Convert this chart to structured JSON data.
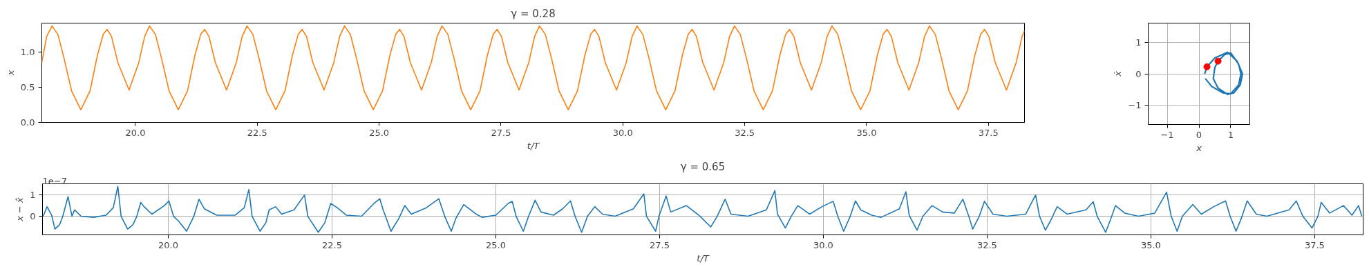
{
  "chart_data": [
    {
      "type": "line",
      "title": "γ = 0.28",
      "xlabel": "t/T",
      "ylabel": "x",
      "xlim": [
        18.08,
        38.24
      ],
      "ylim": [
        0,
        1.41
      ],
      "xticks": [
        {
          "value": 20,
          "label": "20.0"
        },
        22.5,
        {
          "value": 25,
          "label": "25.0"
        },
        27.5,
        {
          "value": 30,
          "label": "30.0"
        },
        32.5,
        {
          "value": 35,
          "label": "35.0"
        },
        37.5
      ],
      "yticks": [
        {
          "value": 0,
          "label": "0.0"
        },
        {
          "value": 0.5,
          "label": "0.5"
        },
        {
          "value": 1,
          "label": "1.0"
        }
      ],
      "series": [
        {
          "color": "#ff7f0e",
          "x": [
            18.08,
            18.18,
            18.29,
            18.41,
            18.54,
            18.69,
            18.88,
            19.07,
            19.22,
            19.34,
            19.42,
            19.51,
            19.64,
            19.87,
            20.07,
            20.19,
            20.29,
            20.41,
            20.54,
            20.69,
            20.88,
            21.07,
            21.22,
            21.34,
            21.42,
            21.51,
            21.64,
            21.87,
            22.07,
            22.19,
            22.29,
            22.41,
            22.54,
            22.69,
            22.88,
            23.07,
            23.22,
            23.34,
            23.42,
            23.51,
            23.64,
            23.87,
            24.07,
            24.19,
            24.29,
            24.41,
            24.54,
            24.69,
            24.88,
            25.07,
            25.22,
            25.34,
            25.42,
            25.51,
            25.64,
            25.87,
            26.07,
            26.19,
            26.29,
            26.41,
            26.54,
            26.69,
            26.88,
            27.07,
            27.22,
            27.34,
            27.42,
            27.51,
            27.64,
            27.87,
            28.07,
            28.19,
            28.29,
            28.41,
            28.54,
            28.69,
            28.88,
            29.07,
            29.22,
            29.34,
            29.42,
            29.51,
            29.64,
            29.87,
            30.07,
            30.19,
            30.29,
            30.41,
            30.54,
            30.69,
            30.88,
            31.07,
            31.22,
            31.34,
            31.42,
            31.51,
            31.64,
            31.87,
            32.07,
            32.19,
            32.29,
            32.41,
            32.54,
            32.69,
            32.88,
            33.07,
            33.22,
            33.34,
            33.42,
            33.51,
            33.64,
            33.87,
            34.07,
            34.19,
            34.29,
            34.41,
            34.54,
            34.69,
            34.88,
            35.07,
            35.22,
            35.34,
            35.42,
            35.51,
            35.64,
            35.87,
            36.07,
            36.19,
            36.29,
            36.41,
            36.54,
            36.69,
            36.88,
            37.07,
            37.22,
            37.34,
            37.42,
            37.51,
            37.64,
            37.87,
            38.07,
            38.19,
            38.24
          ],
          "values": [
            0.85,
            1.22,
            1.37,
            1.25,
            0.9,
            0.45,
            0.18,
            0.45,
            0.95,
            1.25,
            1.32,
            1.22,
            0.85,
            0.46,
            0.85,
            1.22,
            1.37,
            1.25,
            0.9,
            0.45,
            0.18,
            0.45,
            0.95,
            1.25,
            1.32,
            1.22,
            0.85,
            0.46,
            0.85,
            1.22,
            1.37,
            1.25,
            0.9,
            0.45,
            0.18,
            0.45,
            0.95,
            1.25,
            1.32,
            1.22,
            0.85,
            0.46,
            0.85,
            1.22,
            1.37,
            1.25,
            0.9,
            0.45,
            0.18,
            0.45,
            0.95,
            1.25,
            1.32,
            1.22,
            0.85,
            0.46,
            0.85,
            1.22,
            1.37,
            1.25,
            0.9,
            0.45,
            0.18,
            0.45,
            0.95,
            1.25,
            1.32,
            1.22,
            0.85,
            0.46,
            0.85,
            1.22,
            1.37,
            1.25,
            0.9,
            0.45,
            0.18,
            0.45,
            0.95,
            1.25,
            1.32,
            1.22,
            0.85,
            0.46,
            0.85,
            1.22,
            1.37,
            1.25,
            0.9,
            0.45,
            0.18,
            0.45,
            0.95,
            1.25,
            1.32,
            1.22,
            0.85,
            0.46,
            0.85,
            1.22,
            1.37,
            1.25,
            0.9,
            0.45,
            0.18,
            0.45,
            0.95,
            1.25,
            1.32,
            1.22,
            0.85,
            0.46,
            0.85,
            1.22,
            1.37,
            1.25,
            0.9,
            0.45,
            0.18,
            0.45,
            0.95,
            1.25,
            1.32,
            1.22,
            0.85,
            0.46,
            0.85,
            1.22,
            1.37,
            1.25,
            0.9,
            0.45,
            0.18,
            0.45,
            0.95,
            1.25,
            1.32,
            1.22,
            0.85,
            0.46,
            0.85,
            1.22,
            1.3
          ]
        }
      ]
    },
    {
      "type": "line",
      "xlabel": "x",
      "ylabel": "ẋ",
      "xlim": [
        -1.6,
        1.6
      ],
      "ylim": [
        -1.6,
        1.6
      ],
      "grid": true,
      "xticks": [
        {
          "value": -1,
          "label": "−1"
        },
        0,
        1
      ],
      "yticks": [
        {
          "value": -1,
          "label": "−1"
        },
        0,
        1
      ],
      "series": [
        {
          "color": "#1f77b4",
          "x": [
            0.18,
            0.25,
            0.5,
            0.9,
            1.2,
            1.37,
            1.3,
            1.1,
            0.9,
            0.6,
            0.45,
            0.5,
            0.6,
            0.8,
            1.0,
            1.25,
            1.32,
            1.25,
            1.0,
            0.75,
            0.4,
            0.2
          ],
          "values": [
            0,
            0.22,
            0.5,
            0.68,
            0.4,
            0,
            -0.35,
            -0.6,
            -0.65,
            -0.45,
            -0.15,
            0.2,
            0.4,
            0.6,
            0.66,
            0.3,
            0,
            -0.35,
            -0.63,
            -0.6,
            -0.4,
            -0.15
          ]
        },
        {
          "type": "scatter",
          "marker": "circle",
          "color": "#ff0000",
          "x": [
            0.25,
            0.6
          ],
          "values": [
            0.22,
            0.4
          ]
        }
      ]
    },
    {
      "type": "line",
      "title": "γ = 0.65",
      "xlabel": "t/T",
      "ylabel": "x − x̂",
      "annotations": [
        "1e−7"
      ],
      "grid": true,
      "xlim": [
        18.08,
        38.24
      ],
      "ylim": [
        -0.87,
        1.52
      ],
      "xticks": [
        {
          "value": 20,
          "label": "20.0"
        },
        22.5,
        {
          "value": 25,
          "label": "25.0"
        },
        27.5,
        {
          "value": 30,
          "label": "30.0"
        },
        32.5,
        {
          "value": 35,
          "label": "35.0"
        },
        37.5
      ],
      "yticks": [
        0,
        1
      ],
      "series": [
        {
          "color": "#1f77b4",
          "x": [
            18.09,
            18.15,
            18.22,
            18.27,
            18.34,
            18.39,
            18.47,
            18.53,
            18.57,
            18.67,
            18.86,
            19.05,
            19.16,
            19.23,
            19.28,
            19.38,
            19.46,
            19.52,
            19.58,
            19.63,
            19.75,
            19.94,
            20.01,
            20.08,
            20.15,
            20.28,
            20.39,
            20.47,
            20.55,
            20.74,
            21.02,
            21.16,
            21.23,
            21.28,
            21.4,
            21.49,
            21.54,
            21.64,
            21.73,
            21.92,
            22.08,
            22.13,
            22.29,
            22.39,
            22.48,
            22.58,
            22.72,
            22.95,
            23.14,
            23.23,
            23.28,
            23.4,
            23.52,
            23.61,
            23.71,
            23.94,
            24.13,
            24.22,
            24.32,
            24.39,
            24.51,
            24.7,
            24.79,
            25.0,
            25.19,
            25.25,
            25.31,
            25.42,
            25.5,
            25.6,
            25.69,
            25.88,
            26.02,
            26.14,
            26.21,
            26.31,
            26.4,
            26.51,
            26.63,
            26.82,
            27.1,
            27.26,
            27.3,
            27.44,
            27.49,
            27.6,
            27.67,
            27.91,
            28.1,
            28.28,
            28.38,
            28.5,
            28.59,
            28.85,
            29.13,
            29.26,
            29.3,
            29.42,
            29.51,
            29.61,
            29.79,
            29.98,
            30.15,
            30.22,
            30.31,
            30.41,
            30.49,
            30.57,
            30.74,
            30.88,
            31.16,
            31.26,
            31.31,
            31.43,
            31.52,
            31.66,
            31.82,
            32.0,
            32.13,
            32.22,
            32.28,
            32.38,
            32.46,
            32.59,
            32.8,
            33.09,
            33.24,
            33.3,
            33.39,
            33.47,
            33.57,
            33.72,
            34.01,
            34.12,
            34.18,
            34.31,
            34.39,
            34.46,
            34.6,
            34.81,
            35.06,
            35.24,
            35.31,
            35.4,
            35.48,
            35.64,
            35.77,
            35.96,
            36.14,
            36.21,
            36.3,
            36.38,
            36.47,
            36.61,
            36.77,
            37.11,
            37.22,
            37.32,
            37.46,
            37.55,
            37.6,
            37.73,
            37.94,
            38.07,
            38.17,
            38.22
          ],
          "values": [
            0,
            0.45,
            0.05,
            -0.6,
            -0.4,
            0,
            0.92,
            0,
            0.3,
            0,
            -0.05,
            0.05,
            0.4,
            1.4,
            0,
            -0.6,
            -0.4,
            0,
            0.65,
            0.45,
            0.1,
            0.5,
            0.72,
            0,
            -0.2,
            -0.7,
            0,
            0.8,
            0.35,
            0.05,
            0.05,
            0.4,
            1.25,
            0,
            -0.7,
            -0.3,
            0.3,
            0.45,
            0.1,
            0.3,
            1.0,
            0,
            -0.75,
            -0.3,
            0.6,
            0.4,
            0.05,
            0,
            0.6,
            0.82,
            0.3,
            -0.7,
            -0.1,
            0.5,
            0.1,
            0.4,
            0.82,
            0,
            -0.7,
            -0.1,
            0.55,
            0.1,
            -0.05,
            0.05,
            0.6,
            0.7,
            0,
            -0.7,
            0,
            0.75,
            0.2,
            0.05,
            0.35,
            0.72,
            0,
            -0.75,
            0,
            0.45,
            0.1,
            0,
            0.35,
            1.05,
            0,
            -0.7,
            0,
            0.95,
            0.2,
            0.5,
            0.05,
            -0.5,
            0,
            0.8,
            0.1,
            0,
            0.3,
            1.2,
            0.1,
            -0.55,
            0,
            0.5,
            0.1,
            0.45,
            0.7,
            0,
            -0.7,
            0,
            0.72,
            0.3,
            0.05,
            -0.05,
            0.35,
            1.15,
            0.05,
            -0.65,
            0,
            0.5,
            0.2,
            0.15,
            0.8,
            0,
            -0.6,
            0,
            0.7,
            0.1,
            0,
            0.1,
            1.0,
            0,
            -0.65,
            -0.2,
            0.45,
            0.1,
            0.3,
            0.68,
            0,
            -0.75,
            -0.1,
            0.5,
            0.15,
            0,
            0.15,
            1.13,
            0,
            -0.7,
            0,
            0.55,
            0.1,
            0.45,
            0.72,
            0,
            -0.7,
            -0.1,
            0.72,
            0.1,
            0,
            0.3,
            0.72,
            0,
            -0.55,
            0,
            0.65,
            0.15,
            0.5,
            0.05,
            0.5,
            0
          ]
        }
      ]
    }
  ]
}
